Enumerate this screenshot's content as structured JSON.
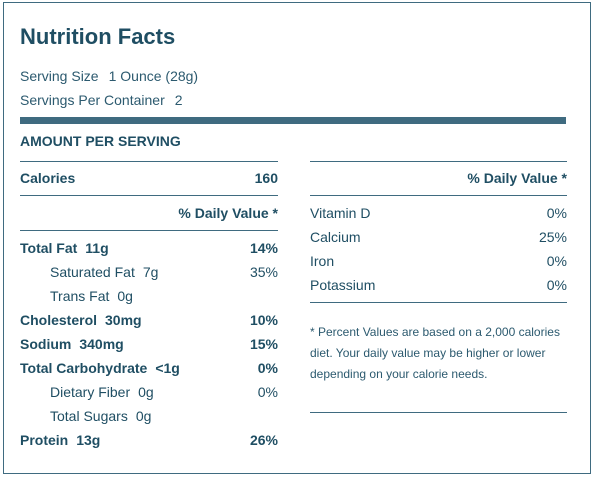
{
  "title": "Nutrition Facts",
  "serving": {
    "size_label": "Serving Size",
    "size_value": "1 Ounce (28g)",
    "per_container_label": "Servings Per Container",
    "per_container_value": "2"
  },
  "amount_header": "AMOUNT PER SERVING",
  "calories": {
    "label": "Calories",
    "value": "160"
  },
  "daily_value_header": "% Daily Value *",
  "nutrients": [
    {
      "label": "Total Fat",
      "amount": "11g",
      "pct": "14%"
    },
    {
      "label": "Saturated Fat",
      "amount": "7g",
      "pct": "35%"
    },
    {
      "label": "Trans Fat",
      "amount": "0g",
      "pct": ""
    },
    {
      "label": "Cholesterol",
      "amount": "30mg",
      "pct": "10%"
    },
    {
      "label": "Sodium",
      "amount": "340mg",
      "pct": "15%"
    },
    {
      "label": "Total Carbohydrate",
      "amount": "<1g",
      "pct": "0%"
    },
    {
      "label": "Dietary Fiber",
      "amount": "0g",
      "pct": "0%"
    },
    {
      "label": "Total Sugars",
      "amount": "0g",
      "pct": ""
    },
    {
      "label": "Protein",
      "amount": "13g",
      "pct": "26%"
    }
  ],
  "vitamins": [
    {
      "label": "Vitamin D",
      "pct": "0%"
    },
    {
      "label": "Calcium",
      "pct": "25%"
    },
    {
      "label": "Iron",
      "pct": "0%"
    },
    {
      "label": "Potassium",
      "pct": "0%"
    }
  ],
  "footnote": "* Percent Values are based on a 2,000 calories diet. Your daily value may be higher or lower depending on your calorie needs.",
  "colors": {
    "primary": "#1f4e63",
    "rule": "#3f6b80"
  }
}
